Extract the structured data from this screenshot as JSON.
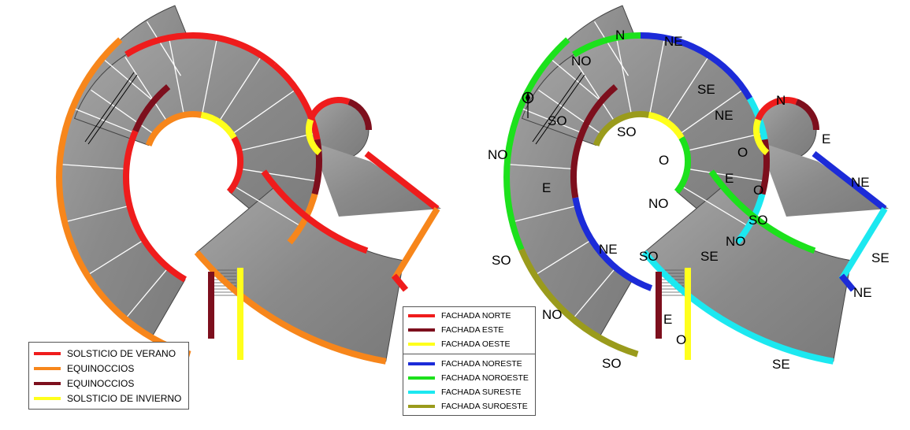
{
  "colors": {
    "norte": "#ef1c1c",
    "equinoccios": "#f7861b",
    "este": "#7d0f1d",
    "oeste": "#ffff1c",
    "noreste": "#1c2bd8",
    "noroeste": "#1ce11c",
    "sureste": "#1ce8f0",
    "suroeste": "#9a9b1c",
    "surface": "#8a8a8a"
  },
  "left_legend": {
    "items": [
      {
        "label": "SOLSTICIO DE VERANO",
        "color": "#ef1c1c"
      },
      {
        "label": "EQUINOCCIOS",
        "color": "#f7861b"
      },
      {
        "label": "EQUINOCCIOS",
        "color": "#7d0f1d"
      },
      {
        "label": "SOLSTICIO DE INVIERNO",
        "color": "#ffff1c"
      }
    ]
  },
  "right_legend": {
    "group1": [
      {
        "label": "FACHADA NORTE",
        "color": "#ef1c1c"
      },
      {
        "label": "FACHADA ESTE",
        "color": "#7d0f1d"
      },
      {
        "label": "FACHADA OESTE",
        "color": "#ffff1c"
      }
    ],
    "group2": [
      {
        "label": "FACHADA NORESTE",
        "color": "#1c2bd8"
      },
      {
        "label": "FACHADA NOROESTE",
        "color": "#1ce11c"
      },
      {
        "label": "FACHADA SURESTE",
        "color": "#1ce8f0"
      },
      {
        "label": "FACHADA SUROESTE",
        "color": "#9a9b1c"
      }
    ]
  },
  "orientation_labels": {
    "n1": "N",
    "ne1": "NE",
    "no1": "NO",
    "se1": "SE",
    "ne2": "NE",
    "so1": "SO",
    "so2": "SO",
    "n2": "N",
    "e1": "E",
    "o1": "O",
    "no2": "NO",
    "e2": "E",
    "e3": "E",
    "o2": "O",
    "ne3": "NE",
    "no3": "NO",
    "so3": "SO",
    "ne4": "NE",
    "no4": "NO",
    "se2": "SE",
    "so4": "SO",
    "so5": "SO",
    "se3": "SE",
    "ne5": "NE",
    "no5": "NO",
    "e4": "E",
    "o3": "O",
    "so6": "SO",
    "se4": "SE"
  }
}
